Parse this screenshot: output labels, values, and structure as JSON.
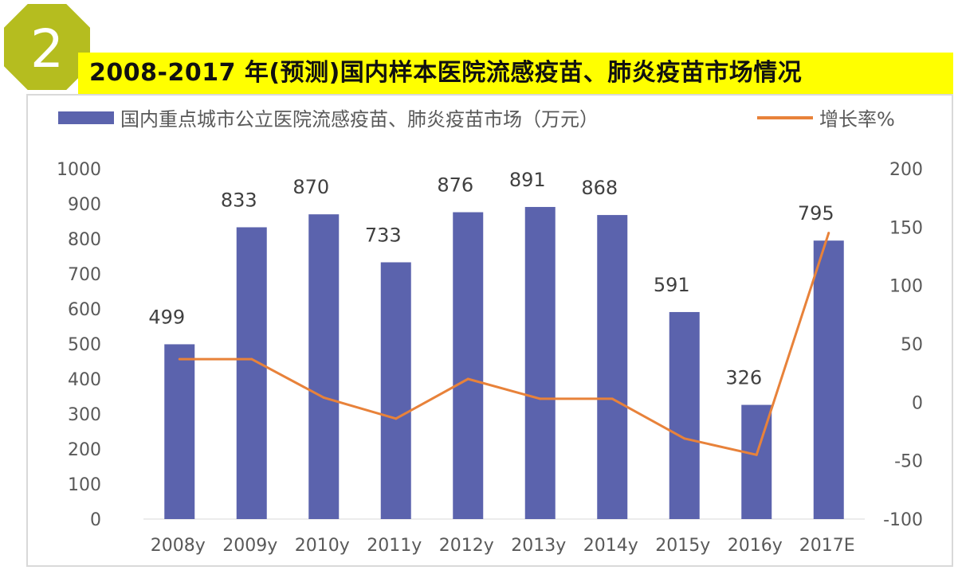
{
  "badge": {
    "number": "2",
    "fill": "#b5bd1f",
    "stroke": "#ffffff"
  },
  "title": "2008-2017 年(预测)国内样本医院流感疫苗、肺炎疫苗市场情况",
  "chart_data": {
    "type": "bar",
    "categories": [
      "2008y",
      "2009y",
      "2010y",
      "2011y",
      "2012y",
      "2013y",
      "2014y",
      "2015y",
      "2016y",
      "2017E"
    ],
    "series": [
      {
        "name": "国内重点城市公立医院流感疫苗、肺炎疫苗市场（万元）",
        "type": "bar",
        "axis": "left",
        "color": "#5b63ad",
        "values": [
          499,
          833,
          870,
          733,
          876,
          891,
          868,
          591,
          326,
          795
        ],
        "data_labels": [
          "499",
          "833",
          "870",
          "733",
          "876",
          "891",
          "868",
          "591",
          "326",
          "795"
        ]
      },
      {
        "name": "增长率%",
        "type": "line",
        "axis": "right",
        "color": "#e8823a",
        "values": [
          37,
          37,
          4,
          -14,
          20,
          3,
          3,
          -31,
          -45,
          145
        ]
      }
    ],
    "y_left": {
      "min": 0,
      "max": 1000,
      "ticks": [
        "0",
        "100",
        "200",
        "300",
        "400",
        "500",
        "600",
        "700",
        "800",
        "900",
        "1000"
      ]
    },
    "y_right": {
      "min": -100,
      "max": 200,
      "ticks": [
        "-100",
        "-50",
        "0",
        "50",
        "100",
        "150",
        "200"
      ]
    },
    "legend_position": "top",
    "grid": false
  }
}
